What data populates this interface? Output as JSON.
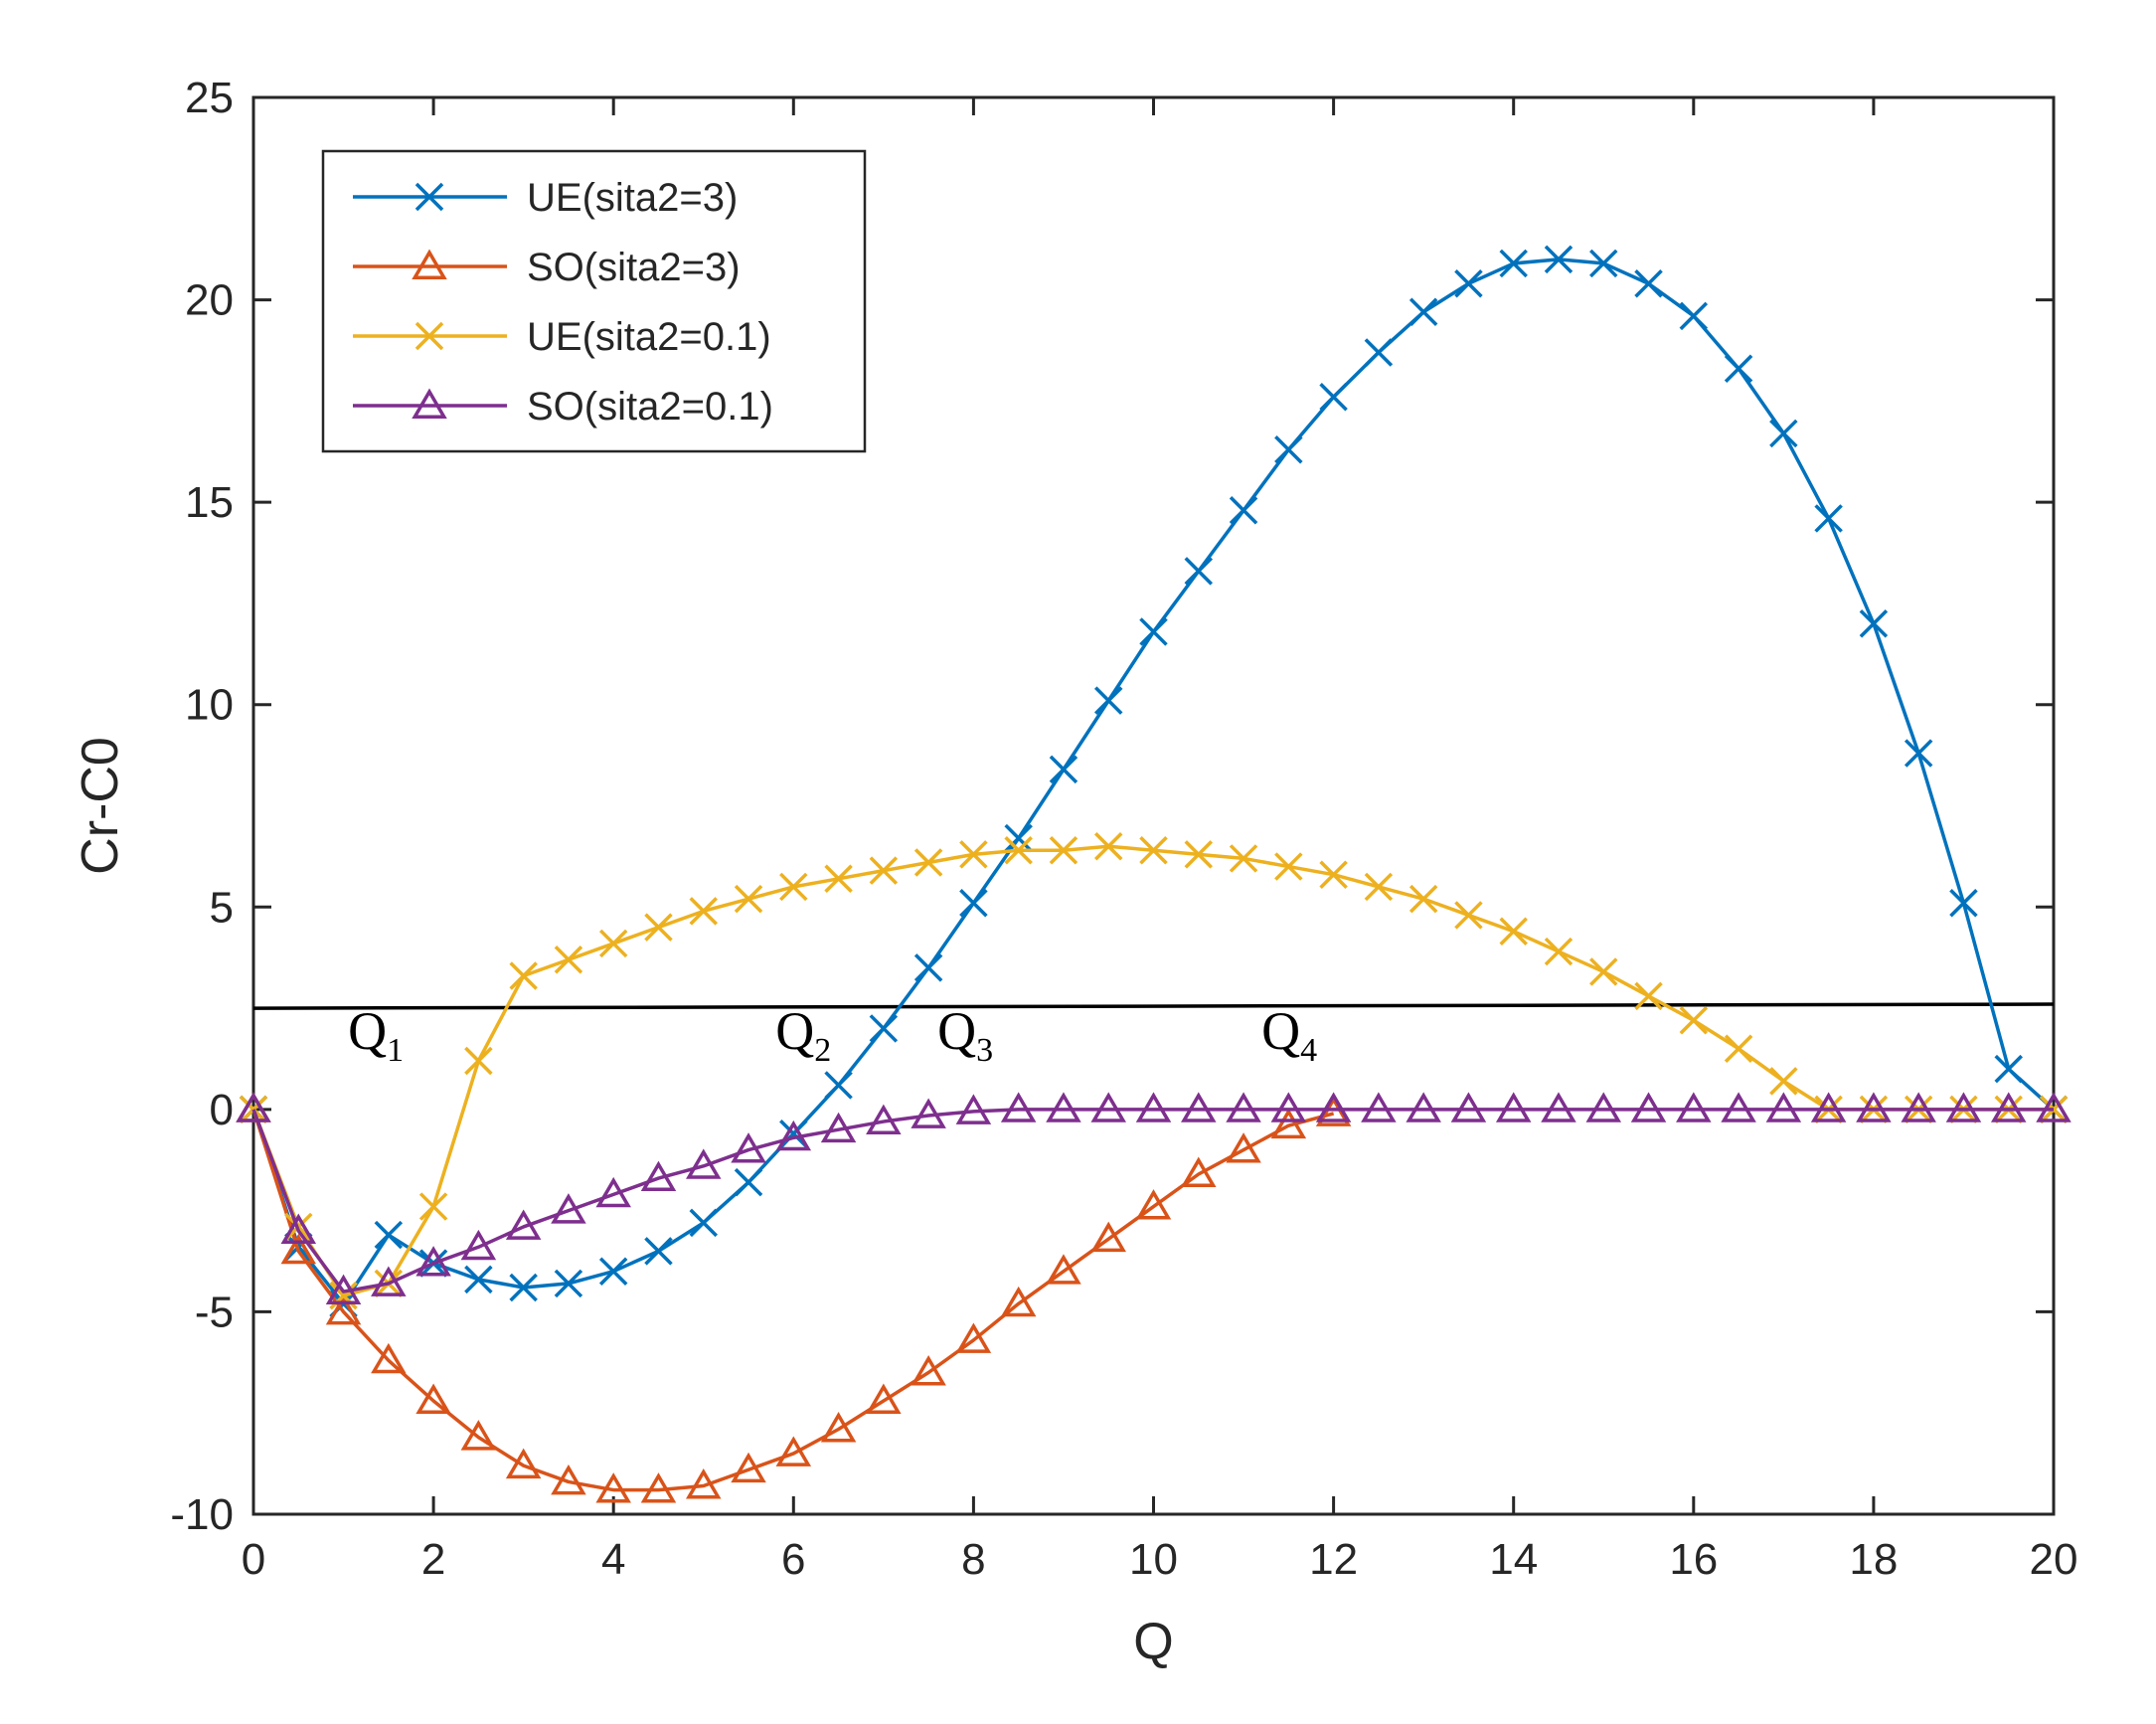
{
  "chart_data": {
    "type": "line",
    "title": "",
    "xlabel": "Q",
    "ylabel": "Cr-C0",
    "xlim": [
      0,
      20
    ],
    "ylim": [
      -10,
      25
    ],
    "xticks": [
      0,
      2,
      4,
      6,
      8,
      10,
      12,
      14,
      16,
      18,
      20
    ],
    "yticks": [
      -10,
      -5,
      0,
      5,
      10,
      15,
      20,
      25
    ],
    "xtick_labels": [
      "0",
      "2",
      "4",
      "6",
      "8",
      "10",
      "12",
      "14",
      "16",
      "18",
      "20"
    ],
    "ytick_labels": [
      "-10",
      "-5",
      "0",
      "5",
      "10",
      "15",
      "20",
      "25"
    ],
    "grid": false,
    "legend_position": "top-left",
    "series": [
      {
        "name": "UE(sita2=3)",
        "color": "#0072BD",
        "marker": "x",
        "x": [
          0,
          0.5,
          1,
          1.5,
          2,
          2.5,
          3,
          3.5,
          4,
          4.5,
          5,
          5.5,
          6,
          6.5,
          7,
          7.5,
          8,
          8.5,
          9,
          9.5,
          10,
          10.5,
          11,
          11.5,
          12,
          12.5,
          13,
          13.5,
          14,
          14.5,
          15,
          15.5,
          16,
          16.5,
          17,
          17.5,
          18,
          18.5,
          19,
          19.5,
          20
        ],
        "y": [
          0,
          -3.4,
          -4.8,
          -3.1,
          -3.8,
          -4.2,
          -4.4,
          -4.3,
          -4.0,
          -3.5,
          -2.8,
          -1.8,
          -0.6,
          0.6,
          2.0,
          3.5,
          5.1,
          6.7,
          8.4,
          10.1,
          11.8,
          13.3,
          14.8,
          16.3,
          17.6,
          18.7,
          19.7,
          20.4,
          20.9,
          21.0,
          20.9,
          20.4,
          19.6,
          18.3,
          16.7,
          14.6,
          12.0,
          8.8,
          5.1,
          1.0,
          0.0
        ]
      },
      {
        "name": "SO(sita2=3)",
        "color": "#D95319",
        "marker": "triangle",
        "x": [
          0,
          0.5,
          1,
          1.5,
          2,
          2.5,
          3,
          3.5,
          4,
          4.5,
          5,
          5.5,
          6,
          6.5,
          7,
          7.5,
          8,
          8.5,
          9,
          9.5,
          10,
          10.5,
          11,
          11.5,
          12
        ],
        "y": [
          0,
          -3.5,
          -5.0,
          -6.2,
          -7.2,
          -8.1,
          -8.8,
          -9.2,
          -9.4,
          -9.4,
          -9.3,
          -8.9,
          -8.5,
          -7.9,
          -7.2,
          -6.5,
          -5.7,
          -4.8,
          -4.0,
          -3.2,
          -2.4,
          -1.6,
          -1.0,
          -0.4,
          -0.1
        ]
      },
      {
        "name": "UE(sita2=0.1)",
        "color": "#EDB120",
        "marker": "x",
        "x": [
          0,
          0.5,
          1,
          1.5,
          2,
          2.5,
          3,
          3.5,
          4,
          4.5,
          5,
          5.5,
          6,
          6.5,
          7,
          7.5,
          8,
          8.5,
          9,
          9.5,
          10,
          10.5,
          11,
          11.5,
          12,
          12.5,
          13,
          13.5,
          14,
          14.5,
          15,
          15.5,
          16,
          16.5,
          17,
          17.5,
          18,
          18.5,
          19,
          19.5,
          20
        ],
        "y": [
          0,
          -2.9,
          -4.6,
          -4.3,
          -2.4,
          1.2,
          3.3,
          3.7,
          4.1,
          4.5,
          4.9,
          5.2,
          5.5,
          5.7,
          5.9,
          6.1,
          6.3,
          6.4,
          6.4,
          6.5,
          6.4,
          6.3,
          6.2,
          6.0,
          5.8,
          5.5,
          5.2,
          4.8,
          4.4,
          3.9,
          3.4,
          2.8,
          2.2,
          1.5,
          0.7,
          0.0,
          0.0,
          0.0,
          0.0,
          0.0,
          0.0
        ]
      },
      {
        "name": "SO(sita2=0.1)",
        "color": "#7E2F8E",
        "marker": "triangle",
        "x": [
          0,
          0.5,
          1,
          1.5,
          2,
          2.5,
          3,
          3.5,
          4,
          4.5,
          5,
          5.5,
          6,
          6.5,
          7,
          7.5,
          8,
          8.5,
          9,
          9.5,
          10,
          10.5,
          11,
          11.5,
          12,
          12.5,
          13,
          13.5,
          14,
          14.5,
          15,
          15.5,
          16,
          16.5,
          17,
          17.5,
          18,
          18.5,
          19,
          19.5,
          20
        ],
        "y": [
          0,
          -3.0,
          -4.5,
          -4.3,
          -3.8,
          -3.4,
          -2.9,
          -2.5,
          -2.1,
          -1.7,
          -1.4,
          -1.0,
          -0.7,
          -0.5,
          -0.3,
          -0.15,
          -0.05,
          0.0,
          0.0,
          0.0,
          0.0,
          0.0,
          0.0,
          0.0,
          0.0,
          0.0,
          0.0,
          0.0,
          0.0,
          0.0,
          0.0,
          0.0,
          0.0,
          0.0,
          0.0,
          0.0,
          0.0,
          0.0,
          0.0,
          0.0,
          0.0
        ]
      }
    ],
    "reference_line": {
      "color": "#000000",
      "x": [
        0,
        20
      ],
      "y": [
        2.5,
        2.6
      ]
    },
    "annotations": [
      {
        "main": "Q",
        "sub": "1",
        "x": 1.05,
        "y": 1.5
      },
      {
        "main": "Q",
        "sub": "2",
        "x": 5.8,
        "y": 1.5
      },
      {
        "main": "Q",
        "sub": "3",
        "x": 7.6,
        "y": 1.5
      },
      {
        "main": "Q",
        "sub": "4",
        "x": 11.2,
        "y": 1.5
      }
    ]
  }
}
